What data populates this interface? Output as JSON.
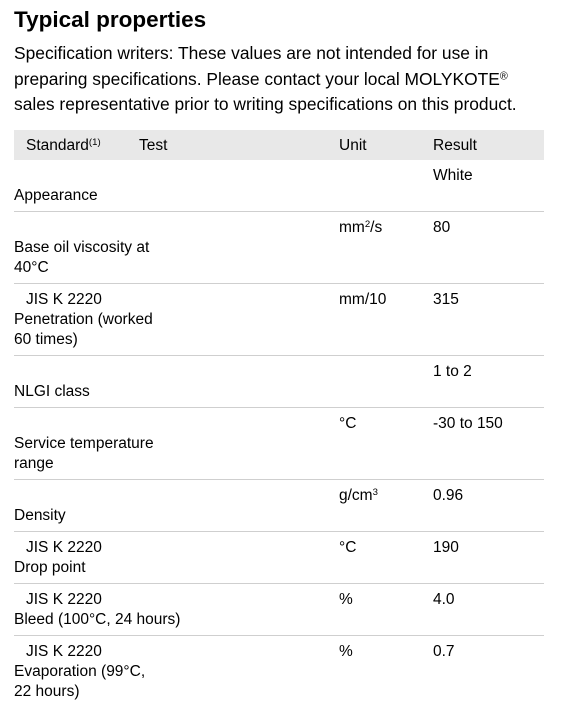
{
  "title": "Typical properties",
  "disclaimer_lines": [
    "Specification writers: These values are not intended for use in",
    "preparing specifications. Please contact your local MOLYKOTE",
    "sales representative prior to writing specifications on this product."
  ],
  "disclaimer_reg": "®",
  "table": {
    "headers": {
      "standard": "Standard",
      "standard_sup": "(1)",
      "test": "Test",
      "unit": "Unit",
      "result": "Result"
    },
    "rows": [
      {
        "standard": "",
        "test": [
          "Appearance"
        ],
        "unit": "",
        "unit_sup": "",
        "result": "White"
      },
      {
        "standard": "",
        "test": [
          "Base oil viscosity at",
          "40°C"
        ],
        "unit": "mm",
        "unit_sup": "2",
        "unit_tail": "/s",
        "result": "80"
      },
      {
        "standard": "JIS K 2220",
        "test": [
          "Penetration (worked",
          "60 times)"
        ],
        "unit": "mm/10",
        "unit_sup": "",
        "result": "315"
      },
      {
        "standard": "",
        "test": [
          "NLGI class"
        ],
        "unit": "",
        "unit_sup": "",
        "result": "1 to 2"
      },
      {
        "standard": "",
        "test": [
          "Service temperature",
          "range"
        ],
        "unit": "°C",
        "unit_sup": "",
        "result": "-30 to 150"
      },
      {
        "standard": "",
        "test": [
          "Density"
        ],
        "unit": "g/cm",
        "unit_sup": "3",
        "result": "0.96"
      },
      {
        "standard": "JIS K 2220",
        "test": [
          "Drop point"
        ],
        "unit": "°C",
        "unit_sup": "",
        "result": "190"
      },
      {
        "standard": "JIS K 2220",
        "test": [
          "Bleed (100°C, 24 hours)"
        ],
        "unit": "%",
        "unit_sup": "",
        "result": "4.0"
      },
      {
        "standard": "JIS K 2220",
        "test": [
          "Evaporation (99°C,",
          "22 hours)"
        ],
        "unit": "%",
        "unit_sup": "",
        "result": "0.7"
      }
    ]
  }
}
